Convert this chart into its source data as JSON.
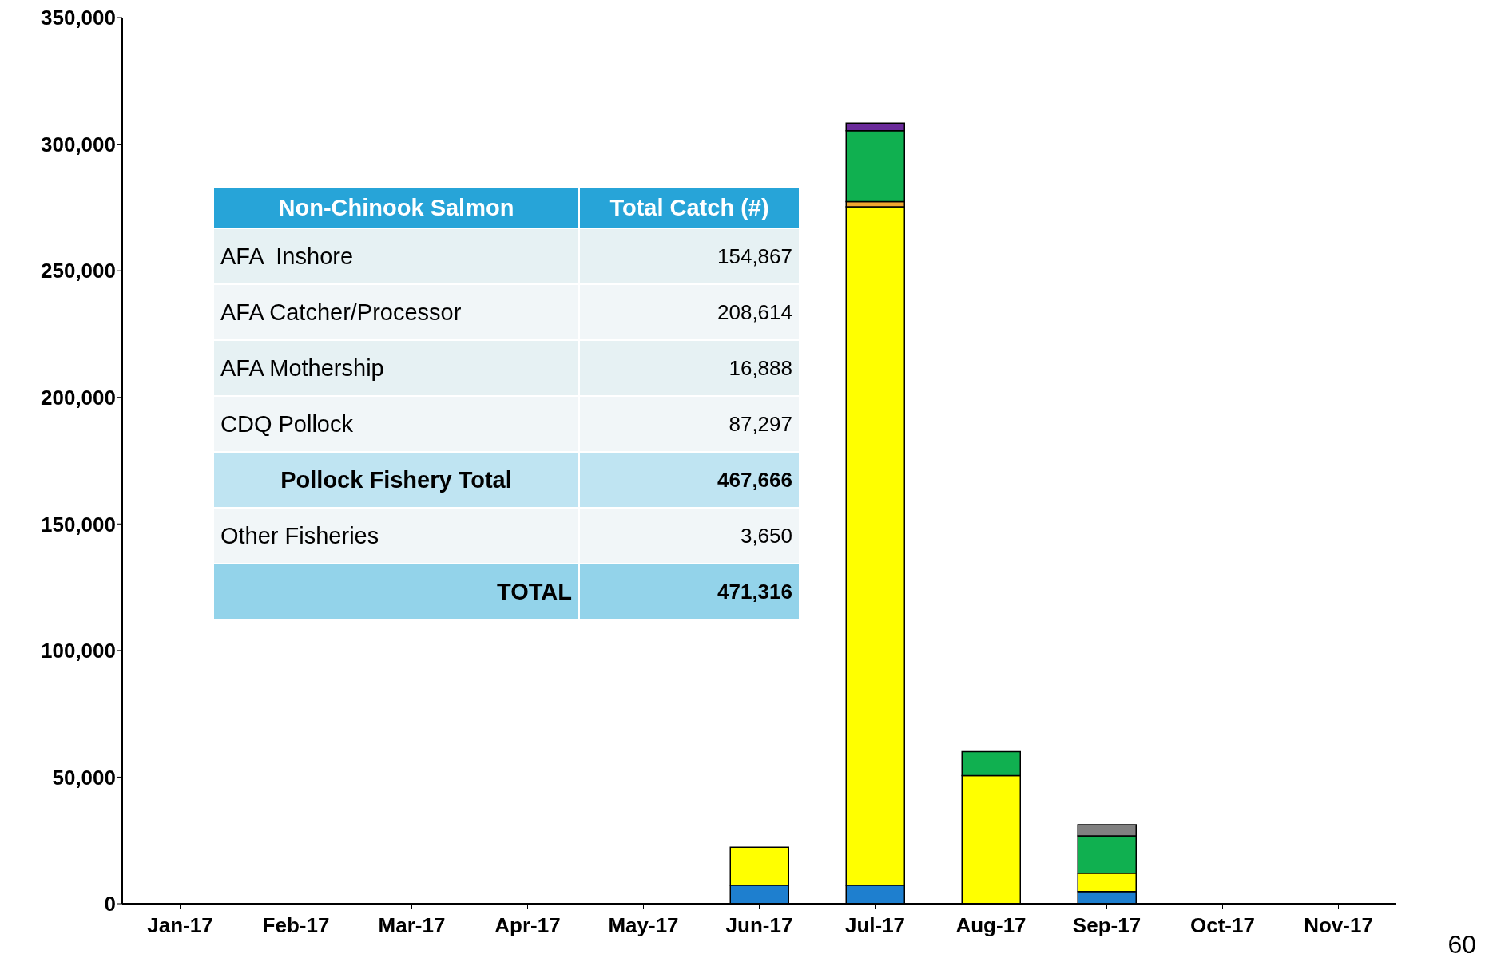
{
  "chart_data": {
    "type": "bar",
    "stacked": true,
    "categories": [
      "Jan-17",
      "Feb-17",
      "Mar-17",
      "Apr-17",
      "May-17",
      "Jun-17",
      "Jul-17",
      "Aug-17",
      "Sep-17",
      "Oct-17",
      "Nov-17"
    ],
    "series": [
      {
        "color": "#1e7fcf",
        "values": [
          0,
          0,
          0,
          0,
          0,
          7300,
          7300,
          null,
          4800,
          0,
          0
        ]
      },
      {
        "color": "#ffff00",
        "values": [
          0,
          0,
          0,
          0,
          0,
          15000,
          268000,
          50600,
          7300,
          0,
          0
        ]
      },
      {
        "color": "#f0a830",
        "values": [
          0,
          0,
          0,
          0,
          0,
          0,
          2000,
          0,
          0,
          0,
          0
        ]
      },
      {
        "color": "#10b050",
        "values": [
          0,
          0,
          0,
          0,
          0,
          0,
          28000,
          9500,
          14700,
          0,
          0
        ]
      },
      {
        "color": "#808080",
        "values": [
          0,
          0,
          0,
          0,
          0,
          0,
          0,
          0,
          4400,
          0,
          0
        ]
      },
      {
        "color": "#6a2a9a",
        "values": [
          0,
          0,
          0,
          0,
          0,
          0,
          3000,
          0,
          0,
          0,
          0
        ]
      }
    ],
    "ylim": [
      0,
      350000
    ],
    "yticks": [
      0,
      {
        "value": 50000,
        "label": "50,000"
      },
      {
        "value": 100000,
        "label": "100,000"
      },
      {
        "value": 150000,
        "label": "150,000"
      },
      {
        "value": 200000,
        "label": "200,000"
      },
      {
        "value": 250000,
        "label": "250,000"
      },
      {
        "value": 300000,
        "label": "300,000"
      },
      {
        "value": 350000,
        "label": "350,000"
      }
    ],
    "grid": false,
    "legend": false,
    "annotations": [
      "Non-Chinook Salmon",
      "Total Catch (#)",
      "AFA  Inshore",
      "154,867",
      "AFA Catcher/Processor",
      "208,614",
      "AFA Mothership",
      "16,888",
      "CDQ Pollock",
      "87,297",
      "Pollock Fishery Total",
      "467,666",
      "Other Fisheries",
      "3,650",
      "TOTAL",
      "471,316",
      "60"
    ]
  }
}
